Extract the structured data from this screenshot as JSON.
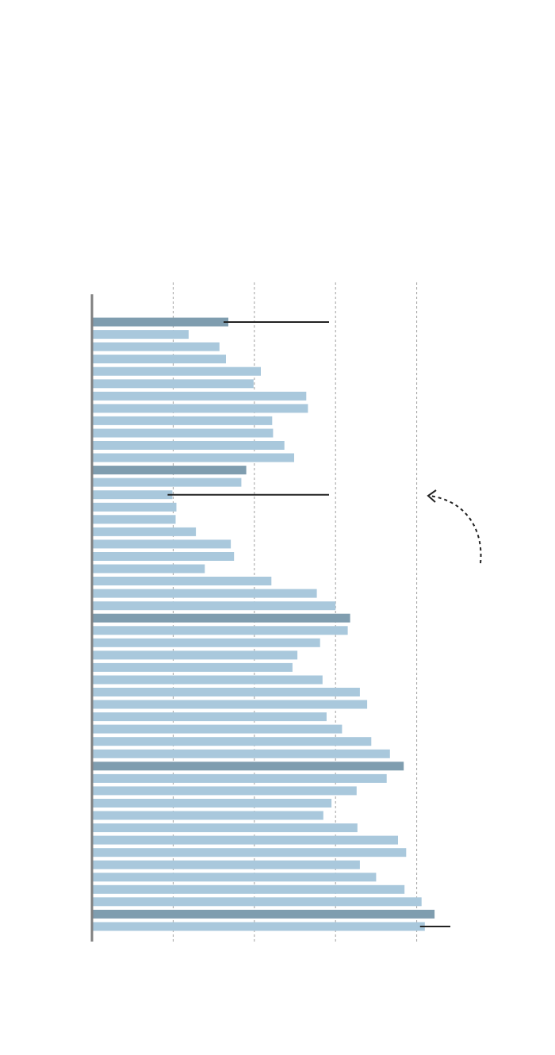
{
  "chart_data": {
    "type": "bar",
    "orientation": "horizontal",
    "title": "",
    "xlabel": "",
    "ylabel": "",
    "xlim": [
      0,
      5
    ],
    "grid": true,
    "tick_values": [
      1,
      2,
      3,
      4
    ],
    "values": [
      1.68,
      1.19,
      1.57,
      1.65,
      2.08,
      1.99,
      2.64,
      2.66,
      2.22,
      2.23,
      2.37,
      2.49,
      1.9,
      1.84,
      0.99,
      1.04,
      1.03,
      1.28,
      1.71,
      1.75,
      1.39,
      2.21,
      2.77,
      3.0,
      3.18,
      3.15,
      2.81,
      2.53,
      2.47,
      2.84,
      3.3,
      3.39,
      2.89,
      3.08,
      3.44,
      3.67,
      3.84,
      3.63,
      3.26,
      2.95,
      2.85,
      3.27,
      3.77,
      3.87,
      3.3,
      3.5,
      3.85,
      4.06,
      4.22,
      4.1
    ],
    "highlight_indices": [
      0,
      12,
      24,
      36,
      48
    ],
    "annotated_indices": [
      0,
      14,
      49
    ],
    "colors": {
      "bar": "#a9c8dc",
      "highlight": "#7f9daf",
      "axis": "#808080",
      "grid": "#a0a0a0",
      "leader": "#222222"
    }
  }
}
